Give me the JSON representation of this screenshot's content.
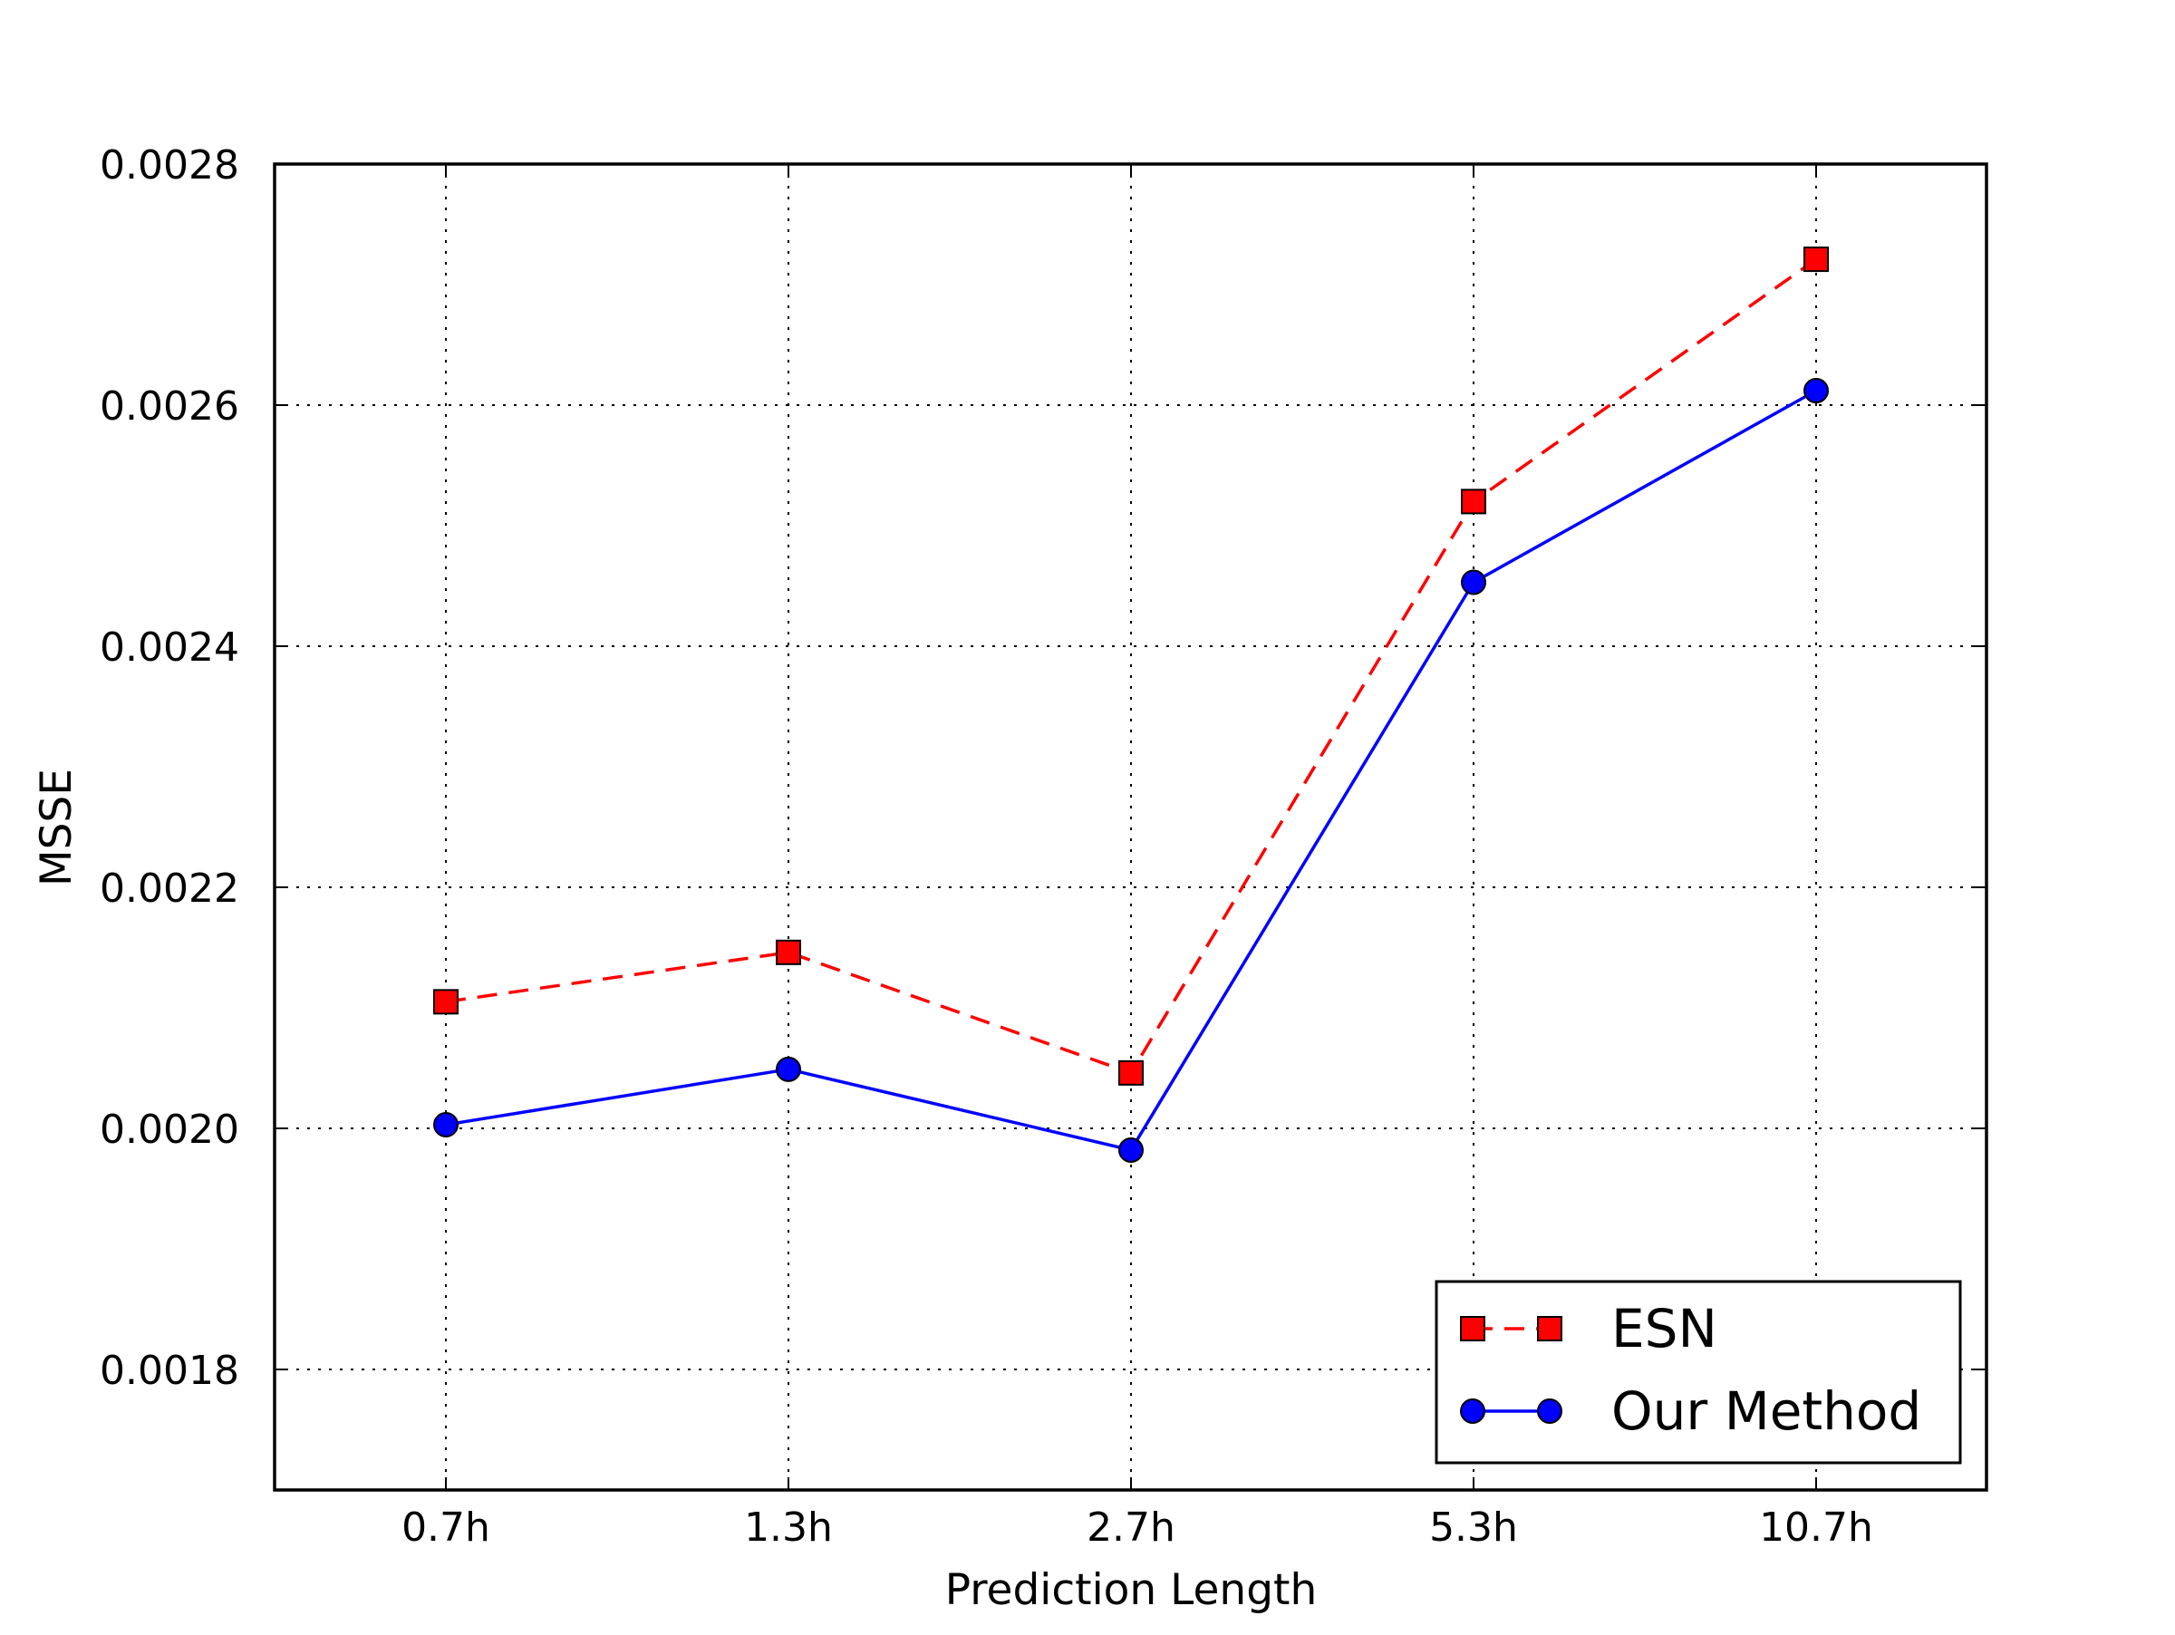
{
  "chart_data": {
    "type": "line",
    "title": "",
    "xlabel": "Prediction Length",
    "ylabel": "MSSE",
    "categories": [
      "0.7h",
      "1.3h",
      "2.7h",
      "5.3h",
      "10.7h"
    ],
    "ylim": [
      0.0017,
      0.0028
    ],
    "yticks": [
      0.0018,
      0.002,
      0.0022,
      0.0024,
      0.0026,
      0.0028
    ],
    "ytick_labels": [
      "0.0018",
      "0.0020",
      "0.0022",
      "0.0024",
      "0.0026",
      "0.0028"
    ],
    "grid": true,
    "legend_position": "lower-right",
    "series": [
      {
        "name": "ESN",
        "color": "#ff0000",
        "line_style": "dashed",
        "marker": "square",
        "values": [
          0.002105,
          0.002146,
          0.002046,
          0.00252,
          0.002721
        ]
      },
      {
        "name": "Our Method",
        "color": "#0000ff",
        "line_style": "solid",
        "marker": "circle",
        "values": [
          0.002003,
          0.002049,
          0.001982,
          0.002453,
          0.002612
        ]
      }
    ]
  }
}
